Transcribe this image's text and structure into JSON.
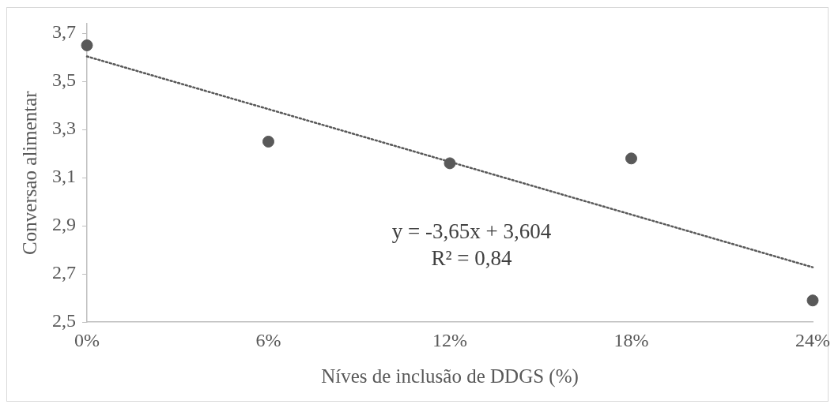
{
  "chart_data": {
    "type": "scatter",
    "xlabel": "Níves de inclusão de DDGS (%)",
    "ylabel": "Conversao alimentar",
    "x": [
      0,
      0.06,
      0.12,
      0.18,
      0.24
    ],
    "series": [
      {
        "color": "#595959",
        "values": [
          3.65,
          3.25,
          3.16,
          3.18,
          2.59
        ],
        "marker": "circle"
      },
      {
        "type": "line",
        "color": "#595959",
        "x": [
          0,
          0.24
        ],
        "values": [
          3.604,
          2.728
        ],
        "line_style": "dotted",
        "marker": "none"
      }
    ],
    "xlim": [
      0,
      0.24
    ],
    "xticks": [
      {
        "value": 0,
        "label": "0%"
      },
      {
        "value": 0.06,
        "label": "6%"
      },
      {
        "value": 0.12,
        "label": "12%"
      },
      {
        "value": 0.18,
        "label": "18%"
      },
      {
        "value": 0.24,
        "label": "24%"
      }
    ],
    "ylim": [
      2.5,
      3.74
    ],
    "yticks": [
      {
        "value": 2.5,
        "label": "2,5"
      },
      {
        "value": 2.7,
        "label": "2,7"
      },
      {
        "value": 2.9,
        "label": "2,9"
      },
      {
        "value": 3.1,
        "label": "3,1"
      },
      {
        "value": 3.3,
        "label": "3,3"
      },
      {
        "value": 3.5,
        "label": "3,5"
      },
      {
        "value": 3.7,
        "label": "3,7"
      }
    ],
    "grid": false,
    "legend": false,
    "annotations": [
      "y = -3,65x + 3,604",
      "R² = 0,84"
    ]
  }
}
